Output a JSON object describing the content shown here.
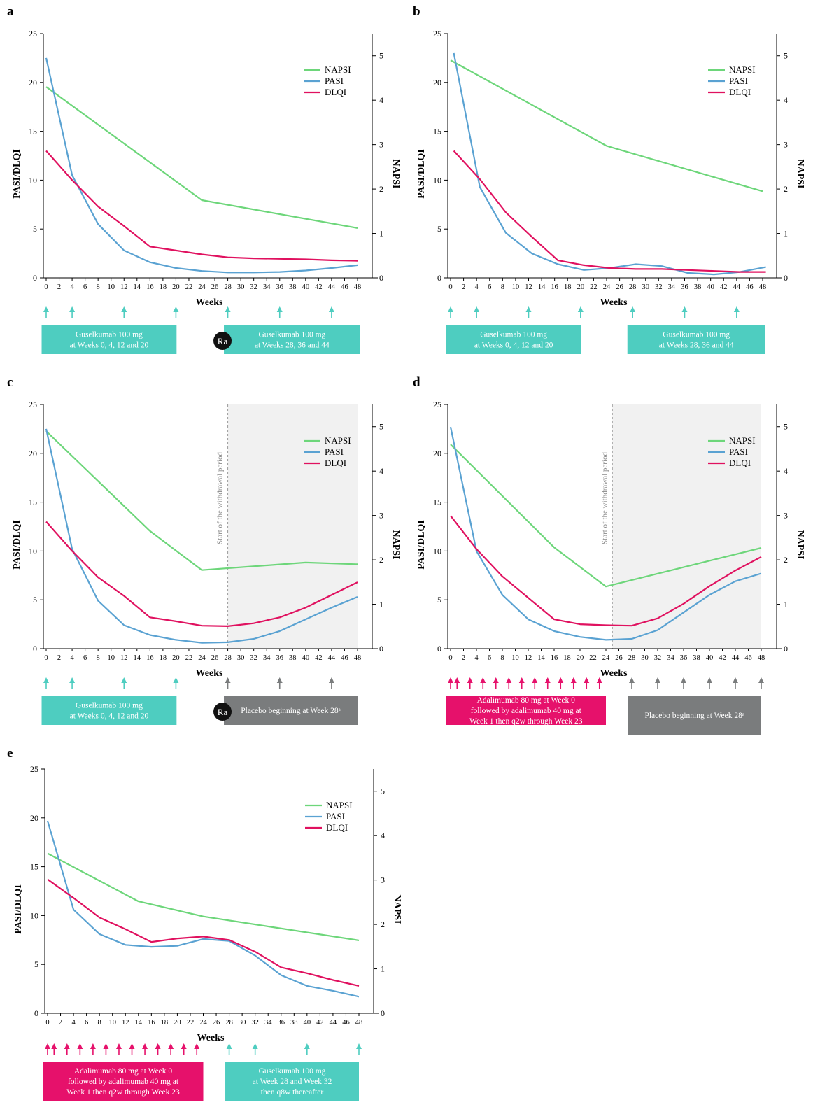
{
  "colors": {
    "napsi": "#6dd67a",
    "pasi": "#5aa2d2",
    "dlqi": "#e0115f",
    "teal": "#4ecdc0",
    "pink": "#e6116b",
    "gray": "#7a7c7d",
    "shade": "#f1f1f1"
  },
  "common": {
    "xticks": [
      0,
      2,
      4,
      6,
      8,
      10,
      12,
      14,
      16,
      18,
      20,
      22,
      24,
      26,
      28,
      30,
      32,
      34,
      36,
      38,
      40,
      42,
      44,
      46,
      48
    ],
    "yticks_left": [
      0,
      5,
      10,
      15,
      20,
      25
    ],
    "yticks_right": [
      0,
      1,
      2,
      3,
      4,
      5
    ],
    "xlabel": "Weeks",
    "ylabel_left": "PASI/DLQI",
    "ylabel_right": "NAPSI",
    "legend": [
      "NAPSI",
      "PASI",
      "DLQI"
    ],
    "ra_label": "Ra",
    "withdrawal_label": "Start of the withdrawal period"
  },
  "chart_data": [
    {
      "panel": "a",
      "type": "line",
      "xlim": [
        0,
        50
      ],
      "ylim_left": [
        0,
        25
      ],
      "ylim_right": [
        0,
        5.5
      ],
      "series": [
        {
          "name": "NAPSI",
          "axis": "right",
          "x": [
            0,
            24,
            48
          ],
          "y": [
            4.3,
            1.75,
            1.12
          ]
        },
        {
          "name": "PASI",
          "axis": "left",
          "x": [
            0,
            4,
            8,
            12,
            16,
            20,
            24,
            28,
            32,
            36,
            40,
            44,
            48
          ],
          "y": [
            22.5,
            10.5,
            5.5,
            2.8,
            1.6,
            1.0,
            0.7,
            0.55,
            0.55,
            0.6,
            0.75,
            1.0,
            1.3
          ]
        },
        {
          "name": "DLQI",
          "axis": "left",
          "x": [
            0,
            4,
            8,
            12,
            16,
            20,
            24,
            28,
            32,
            36,
            40,
            44,
            48
          ],
          "y": [
            13,
            10,
            7.3,
            5.3,
            3.2,
            2.8,
            2.4,
            2.1,
            2.0,
            1.95,
            1.9,
            1.8,
            1.75
          ]
        }
      ],
      "withdrawal_week": null,
      "arrows": [
        {
          "x": [
            0,
            4,
            12,
            20
          ],
          "color": "teal"
        },
        {
          "x": [
            28,
            36,
            44
          ],
          "color": "teal"
        }
      ],
      "boxes": [
        {
          "from": -0.7,
          "to": 20.1,
          "color": "teal",
          "lines": [
            "Guselkumab 100 mg",
            "at Weeks 0, 4, 12 and 20"
          ]
        },
        {
          "from": 27.4,
          "to": 48.4,
          "color": "teal",
          "lines": [
            "Guselkumab 100 mg",
            "at Weeks 28, 36 and 44"
          ],
          "ra": true
        }
      ]
    },
    {
      "panel": "b",
      "type": "line",
      "xlim": [
        0,
        50
      ],
      "ylim_left": [
        0,
        25
      ],
      "ylim_right": [
        0,
        5.5
      ],
      "series": [
        {
          "name": "NAPSI",
          "axis": "right",
          "x": [
            0,
            24,
            48
          ],
          "y": [
            4.9,
            2.97,
            1.95
          ]
        },
        {
          "name": "PASI",
          "axis": "left",
          "x": [
            0.5,
            4.5,
            8.5,
            12.5,
            16.5,
            20.5,
            24.5,
            28.5,
            32.5,
            36.5,
            40.5,
            44.5,
            48.5
          ],
          "y": [
            23,
            9.3,
            4.6,
            2.5,
            1.4,
            0.8,
            1.0,
            1.4,
            1.2,
            0.5,
            0.35,
            0.6,
            1.1
          ]
        },
        {
          "name": "DLQI",
          "axis": "left",
          "x": [
            0.5,
            4.5,
            8.5,
            12.5,
            16.5,
            20.5,
            24.5,
            28.5,
            32.5,
            36.5,
            40.5,
            44.5,
            48.5
          ],
          "y": [
            13,
            10.1,
            6.7,
            4.2,
            1.8,
            1.3,
            1.0,
            0.9,
            0.9,
            0.8,
            0.7,
            0.6,
            0.6
          ]
        }
      ],
      "withdrawal_week": null,
      "arrows": [
        {
          "x": [
            0,
            4,
            12,
            20
          ],
          "color": "teal"
        },
        {
          "x": [
            28,
            36,
            44
          ],
          "color": "teal"
        }
      ],
      "boxes": [
        {
          "from": -0.7,
          "to": 20.1,
          "color": "teal",
          "lines": [
            "Guselkumab 100 mg",
            "at Weeks 0, 4, 12 and 20"
          ]
        },
        {
          "from": 27.2,
          "to": 48.4,
          "color": "teal",
          "lines": [
            "Guselkumab 100 mg",
            "at Weeks 28, 36 and 44"
          ]
        }
      ]
    },
    {
      "panel": "c",
      "type": "line",
      "xlim": [
        0,
        48
      ],
      "ylim_left": [
        0,
        25
      ],
      "ylim_right": [
        0,
        5.5
      ],
      "series": [
        {
          "name": "NAPSI",
          "axis": "right",
          "x": [
            0,
            16,
            24,
            40,
            48
          ],
          "y": [
            4.9,
            2.65,
            1.77,
            1.94,
            1.9
          ]
        },
        {
          "name": "PASI",
          "axis": "left",
          "x": [
            0,
            4,
            8,
            12,
            16,
            20,
            24,
            28,
            32,
            36,
            40,
            44,
            48
          ],
          "y": [
            22.5,
            10.2,
            4.9,
            2.4,
            1.4,
            0.9,
            0.6,
            0.65,
            1.0,
            1.8,
            3.0,
            4.2,
            5.3
          ]
        },
        {
          "name": "DLQI",
          "axis": "left",
          "x": [
            0,
            4,
            8,
            12,
            16,
            20,
            24,
            28,
            32,
            36,
            40,
            44,
            48
          ],
          "y": [
            13,
            10,
            7.3,
            5.4,
            3.2,
            2.8,
            2.35,
            2.3,
            2.6,
            3.2,
            4.2,
            5.5,
            6.8
          ]
        }
      ],
      "withdrawal_week": 28,
      "arrows": [
        {
          "x": [
            0,
            4,
            12,
            20
          ],
          "color": "teal"
        },
        {
          "x": [
            28,
            36,
            44
          ],
          "color": "gray"
        }
      ],
      "boxes": [
        {
          "from": -0.7,
          "to": 20.1,
          "color": "teal",
          "lines": [
            "Guselkumab 100 mg",
            "at Weeks 0, 4, 12 and 20"
          ]
        },
        {
          "from": 27.4,
          "to": 48,
          "color": "gray",
          "lines": [
            "Placebo beginning at Week 28ᵃ"
          ],
          "ra": true
        }
      ]
    },
    {
      "panel": "d",
      "type": "line",
      "xlim": [
        0,
        48
      ],
      "ylim_left": [
        0,
        25
      ],
      "ylim_right": [
        0,
        5.5
      ],
      "series": [
        {
          "name": "NAPSI",
          "axis": "right",
          "x": [
            0,
            16,
            24,
            48
          ],
          "y": [
            4.6,
            2.28,
            1.4,
            2.27
          ]
        },
        {
          "name": "PASI",
          "axis": "left",
          "x": [
            0,
            4,
            8,
            12,
            16,
            20,
            24,
            28,
            32,
            36,
            40,
            44,
            48
          ],
          "y": [
            22.7,
            10,
            5.5,
            3.0,
            1.8,
            1.2,
            0.9,
            1.0,
            1.9,
            3.7,
            5.5,
            6.9,
            7.7
          ]
        },
        {
          "name": "DLQI",
          "axis": "left",
          "x": [
            0,
            4,
            8,
            12,
            16,
            20,
            24,
            28,
            32,
            36,
            40,
            44,
            48
          ],
          "y": [
            13.6,
            10.2,
            7.4,
            5.2,
            3.0,
            2.5,
            2.4,
            2.35,
            3.1,
            4.6,
            6.4,
            8.0,
            9.4
          ]
        }
      ],
      "withdrawal_week": 25,
      "arrows": [
        {
          "x": [
            0,
            1,
            3,
            5,
            7,
            9,
            11,
            13,
            15,
            17,
            19,
            21,
            23
          ],
          "color": "pink"
        },
        {
          "x": [
            28,
            32,
            36,
            40,
            44,
            48
          ],
          "color": "gray"
        }
      ],
      "boxes": [
        {
          "from": -0.7,
          "to": 24,
          "color": "pink",
          "lines": [
            "Adalimumab 80 mg at Week 0",
            "followed by adalimumab 40 mg at",
            "Week 1 then q2w through Week 23"
          ]
        },
        {
          "from": 27.4,
          "to": 48,
          "color": "gray",
          "lines": [
            "Placebo beginning at Week 28ᵃ"
          ],
          "tall": true
        }
      ]
    },
    {
      "panel": "e",
      "type": "line",
      "xlim": [
        0,
        50
      ],
      "ylim_left": [
        0,
        25
      ],
      "ylim_right": [
        0,
        5.5
      ],
      "series": [
        {
          "name": "NAPSI",
          "axis": "right",
          "x": [
            0,
            14,
            24,
            48
          ],
          "y": [
            3.6,
            2.52,
            2.18,
            1.64
          ]
        },
        {
          "name": "PASI",
          "axis": "left",
          "x": [
            0,
            4,
            8,
            12,
            16,
            20,
            24,
            28,
            32,
            36,
            40,
            44,
            48
          ],
          "y": [
            19.7,
            10.6,
            8.1,
            7.0,
            6.8,
            6.9,
            7.6,
            7.4,
            5.9,
            3.9,
            2.8,
            2.3,
            1.7
          ]
        },
        {
          "name": "DLQI",
          "axis": "left",
          "x": [
            0,
            4,
            8,
            12,
            16,
            20,
            24,
            28,
            32,
            36,
            40,
            44,
            48
          ],
          "y": [
            13.7,
            11.8,
            9.8,
            8.6,
            7.3,
            7.65,
            7.85,
            7.5,
            6.3,
            4.7,
            4.1,
            3.4,
            2.8
          ]
        }
      ],
      "withdrawal_week": null,
      "arrows": [
        {
          "x": [
            0,
            1,
            3,
            5,
            7,
            9,
            11,
            13,
            15,
            17,
            19,
            21,
            23
          ],
          "color": "pink"
        },
        {
          "x": [
            28,
            32,
            40,
            48
          ],
          "color": "teal"
        }
      ],
      "boxes": [
        {
          "from": -0.7,
          "to": 24,
          "color": "pink",
          "lines": [
            "Adalimumab 80 mg at Week 0",
            "followed by adalimumab 40 mg at",
            "Week 1 then q2w through Week 23"
          ],
          "tall": true
        },
        {
          "from": 27.4,
          "to": 48,
          "color": "teal",
          "lines": [
            "Guselkumab 100 mg",
            "at Week 28 and Week 32",
            "then q8w thereafter"
          ],
          "tall": true
        }
      ]
    }
  ]
}
